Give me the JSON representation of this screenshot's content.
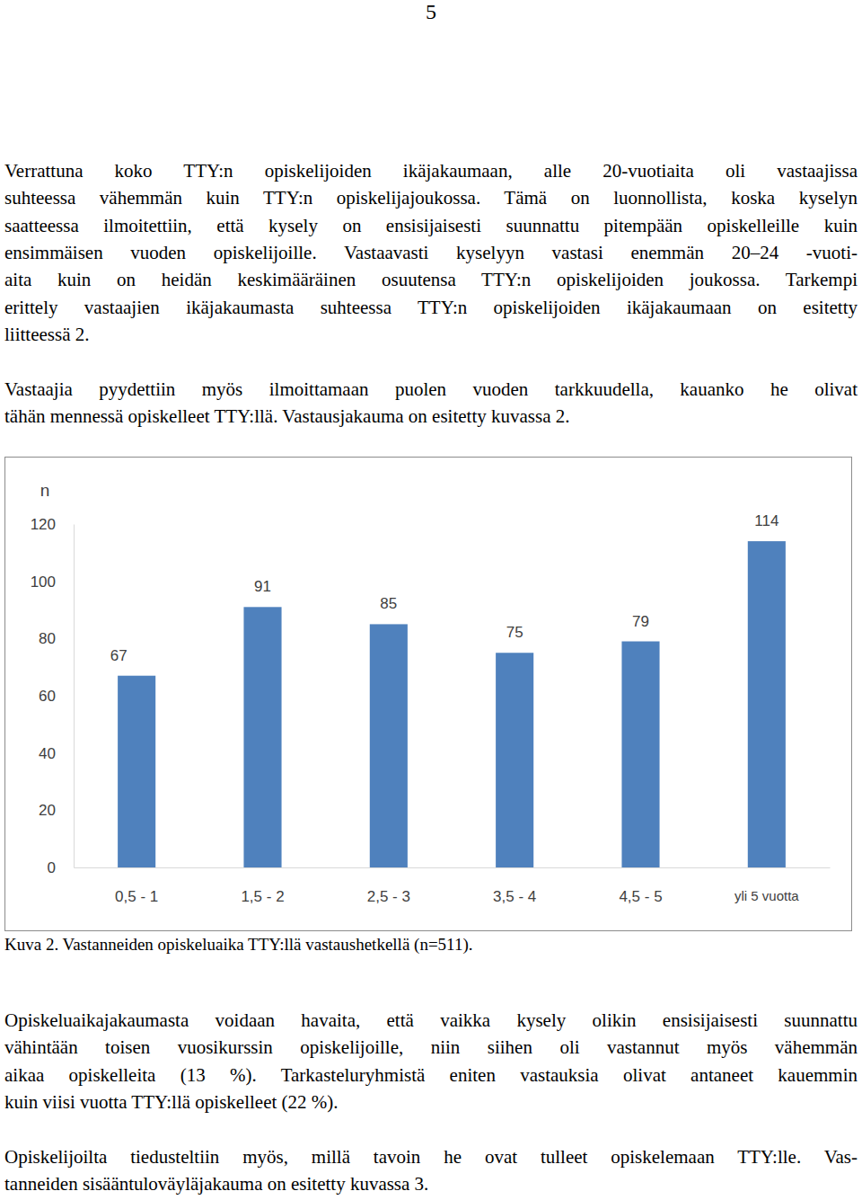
{
  "page_number": "5",
  "text_before": [
    [
      "Verrattuna koko TTY:n opiskelijoiden ikäjakaumaan, alle 20-vuotiaita oli vastaajissa",
      "suhteessa vähemmän kuin TTY:n opiskelijajoukossa. Tämä on luonnollista, koska kyselyn",
      "saatteessa ilmoitettiin, että kysely on ensisijaisesti suunnattu pitempään opiskelleille kuin",
      "ensimmäisen vuoden opiskelijoille. Vastaavasti kyselyyn vastasi enemmän 20–24 -vuoti-",
      "aita kuin on heidän keskimääräinen osuutensa TTY:n opiskelijoiden joukossa. Tarkempi",
      "erittely vastaajien ikäjakaumasta suhteessa TTY:n opiskelijoiden ikäjakaumaan on esitetty",
      "liitteessä 2."
    ],
    [
      "Vastaajia pyydettiin myös ilmoittamaan puolen vuoden tarkkuudella, kauanko he olivat",
      "tähän mennessä opiskelleet TTY:llä. Vastausjakauma on esitetty kuvassa 2."
    ]
  ],
  "chart_data": {
    "type": "bar",
    "ylabel": "n",
    "categories": [
      "0,5 - 1",
      "1,5 - 2",
      "2,5 - 3",
      "3,5 - 4",
      "4,5 - 5",
      "yli 5 vuotta"
    ],
    "values": [
      67,
      91,
      85,
      75,
      79,
      114
    ],
    "color": "#4f81bd",
    "ylim": [
      0,
      120
    ],
    "yticks": [
      0,
      20,
      40,
      60,
      80,
      100,
      120
    ],
    "grid": false,
    "data_labels": true
  },
  "caption": "Kuva 2. Vastanneiden opiskeluaika TTY:llä vastaushetkellä (n=511).",
  "text_after": [
    [
      "Opiskeluaikajakaumasta voidaan havaita, että vaikka kysely olikin ensisijaisesti suunnattu",
      "vähintään toisen vuosikurssin opiskelijoille, niin siihen oli vastannut myös vähemmän",
      "aikaa opiskelleita (13 %). Tarkasteluryhmistä eniten vastauksia olivat antaneet kauemmin",
      "kuin viisi vuotta TTY:llä opiskelleet (22 %)."
    ],
    [
      "Opiskelijoilta tiedusteltiin myös, millä tavoin he ovat tulleet opiskelemaan TTY:lle. Vas-",
      "tanneiden sisääntuloväyläjakauma on esitetty kuvassa 3."
    ]
  ]
}
